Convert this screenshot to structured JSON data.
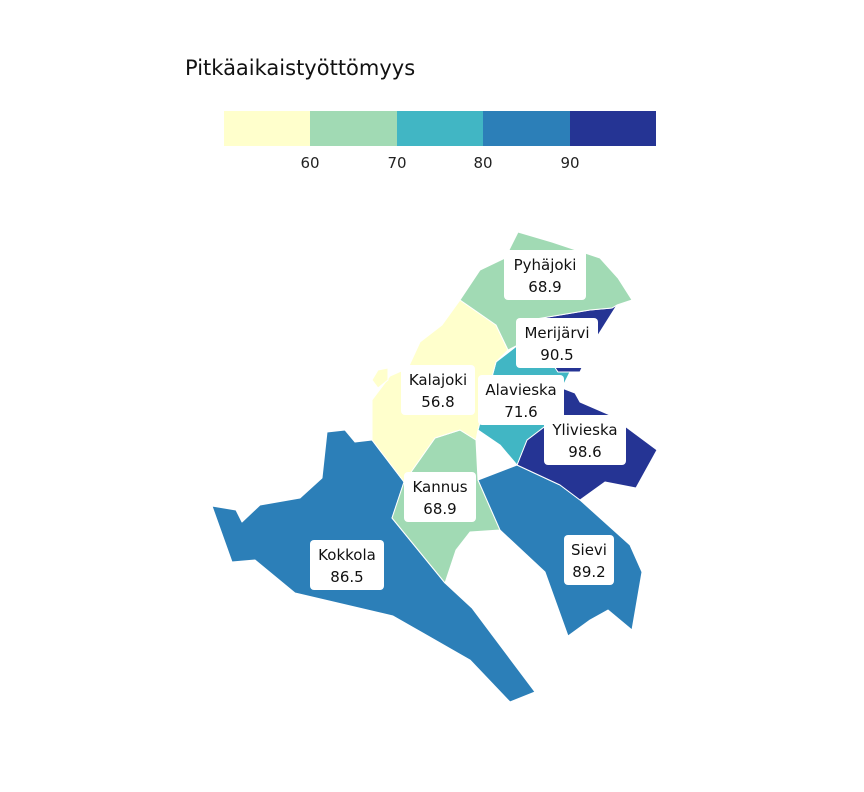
{
  "legend": {
    "title": "Pitkäaikaistyöttömyys",
    "colors": [
      "#ffffcc",
      "#a1dab4",
      "#41b6c4",
      "#2c7fb8",
      "#253494"
    ],
    "ticks": [
      "60",
      "70",
      "80",
      "90"
    ]
  },
  "regions": [
    {
      "name": "Pyhäjoki",
      "value": "68.9",
      "color": "#a1dab4"
    },
    {
      "name": "Merijärvi",
      "value": "90.5",
      "color": "#253494"
    },
    {
      "name": "Kalajoki",
      "value": "56.8",
      "color": "#ffffcc"
    },
    {
      "name": "Alavieska",
      "value": "71.6",
      "color": "#41b6c4"
    },
    {
      "name": "Ylivieska",
      "value": "98.6",
      "color": "#253494"
    },
    {
      "name": "Kannus",
      "value": "68.9",
      "color": "#a1dab4"
    },
    {
      "name": "Kokkola",
      "value": "86.5",
      "color": "#2c7fb8"
    },
    {
      "name": "Sievi",
      "value": "89.2",
      "color": "#2c7fb8"
    }
  ]
}
